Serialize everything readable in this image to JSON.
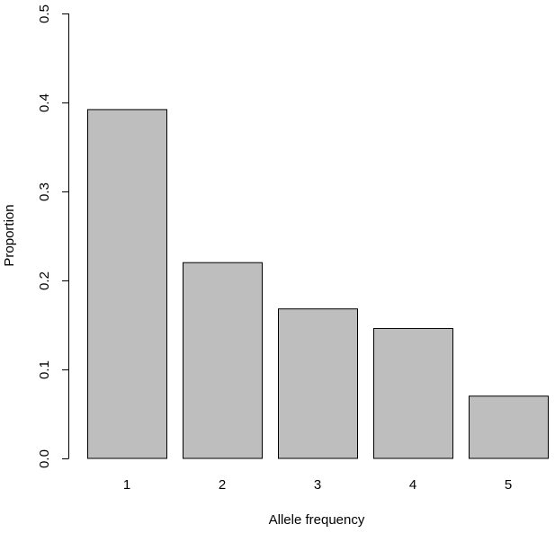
{
  "chart_data": {
    "type": "bar",
    "categories": [
      "1",
      "2",
      "3",
      "4",
      "5"
    ],
    "values": [
      0.392,
      0.22,
      0.168,
      0.146,
      0.07
    ],
    "title": "",
    "xlabel": "Allele frequency",
    "ylabel": "Proportion",
    "ylim": [
      0,
      0.5
    ],
    "yticks": [
      "0.0",
      "0.1",
      "0.2",
      "0.3",
      "0.4",
      "0.5"
    ],
    "bar_color": "#bebebe",
    "grid": false
  }
}
